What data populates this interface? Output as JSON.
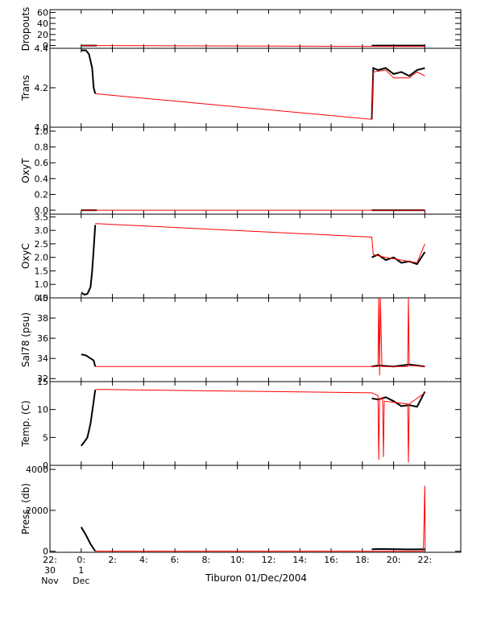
{
  "figure_title": "Tiburon 01/Dec/2004",
  "colors": {
    "axis": "#000000",
    "raw_series": "#000000",
    "fit_series": "#ff0000",
    "background": "#ffffff"
  },
  "x_axis": {
    "unit": "hours since 2004-12-01 00:00",
    "range": [
      -2,
      24.3
    ],
    "ticks": [
      {
        "x": -2,
        "lines": [
          "22:",
          "30",
          "Nov"
        ]
      },
      {
        "x": 0,
        "lines": [
          "0:",
          "1",
          "Dec"
        ]
      },
      {
        "x": 2,
        "lines": [
          "2:"
        ]
      },
      {
        "x": 4,
        "lines": [
          "4:"
        ]
      },
      {
        "x": 6,
        "lines": [
          "6:"
        ]
      },
      {
        "x": 8,
        "lines": [
          "8:"
        ]
      },
      {
        "x": 10,
        "lines": [
          "10:"
        ]
      },
      {
        "x": 12,
        "lines": [
          "12:"
        ]
      },
      {
        "x": 14,
        "lines": [
          "14:"
        ]
      },
      {
        "x": 16,
        "lines": [
          "16:"
        ]
      },
      {
        "x": 18,
        "lines": [
          "18:"
        ]
      },
      {
        "x": 20,
        "lines": [
          "20:"
        ]
      },
      {
        "x": 22,
        "lines": [
          "22:"
        ]
      }
    ]
  },
  "chart_data": [
    {
      "type": "line",
      "ylabel": "Dropouts",
      "ylim": [
        -5,
        65
      ],
      "yticks": [
        0,
        10,
        20,
        30,
        40,
        50,
        60
      ],
      "yticklabels": [
        "0",
        "",
        "20",
        "",
        "40",
        "",
        "60"
      ],
      "series": [
        {
          "role": "raw",
          "segments": [
            [
              [
                0,
                0
              ],
              [
                1.0,
                0
              ]
            ],
            [
              [
                18.6,
                0
              ],
              [
                22.0,
                0
              ]
            ]
          ]
        },
        {
          "role": "fit",
          "segments": [
            [
              [
                0,
                0
              ],
              [
                1.0,
                0
              ],
              [
                18.6,
                -1.5
              ],
              [
                22.0,
                -1.5
              ]
            ]
          ]
        }
      ]
    },
    {
      "type": "line",
      "ylabel": "Trans",
      "ylim": [
        4.0,
        4.4
      ],
      "yticks": [
        4.0,
        4.2,
        4.4
      ],
      "yticklabels": [
        "4.0",
        "4.2",
        "4.4"
      ],
      "series": [
        {
          "role": "raw",
          "segments": [
            [
              [
                0,
                4.39
              ],
              [
                0.3,
                4.39
              ],
              [
                0.5,
                4.37
              ],
              [
                0.7,
                4.3
              ],
              [
                0.8,
                4.2
              ],
              [
                0.9,
                4.17
              ]
            ],
            [
              [
                18.6,
                4.04
              ],
              [
                18.7,
                4.3
              ],
              [
                19.0,
                4.29
              ],
              [
                19.5,
                4.3
              ],
              [
                20.0,
                4.27
              ],
              [
                20.5,
                4.28
              ],
              [
                21.0,
                4.26
              ],
              [
                21.5,
                4.29
              ],
              [
                22.0,
                4.3
              ]
            ]
          ]
        },
        {
          "role": "fit",
          "segments": [
            [
              [
                0.9,
                4.17
              ],
              [
                18.6,
                4.04
              ],
              [
                18.7,
                4.28
              ],
              [
                19.5,
                4.29
              ],
              [
                20.0,
                4.25
              ],
              [
                21.0,
                4.25
              ],
              [
                21.5,
                4.28
              ],
              [
                22.0,
                4.26
              ]
            ]
          ]
        }
      ]
    },
    {
      "type": "line",
      "ylabel": "OxyT",
      "ylim": [
        -0.05,
        1.05
      ],
      "yticks": [
        0.0,
        0.2,
        0.4,
        0.6,
        0.8,
        1.0
      ],
      "yticklabels": [
        "0.0",
        "0.2",
        "0.4",
        "0.6",
        "0.8",
        "1.0"
      ],
      "series": [
        {
          "role": "raw",
          "segments": [
            [
              [
                0,
                0
              ],
              [
                1.0,
                0
              ]
            ],
            [
              [
                18.6,
                0
              ],
              [
                22.0,
                0
              ]
            ]
          ]
        },
        {
          "role": "fit",
          "segments": [
            [
              [
                0,
                0
              ],
              [
                22.0,
                0
              ]
            ]
          ]
        }
      ]
    },
    {
      "type": "line",
      "ylabel": "OxyC",
      "ylim": [
        0.5,
        3.6
      ],
      "yticks": [
        0.5,
        1.0,
        1.5,
        2.0,
        2.5,
        3.0,
        3.5
      ],
      "yticklabels": [
        "0.5",
        "1.0",
        "1.5",
        "2.0",
        "2.5",
        "3.0",
        "3.5"
      ],
      "series": [
        {
          "role": "raw",
          "segments": [
            [
              [
                0,
                0.7
              ],
              [
                0.2,
                0.62
              ],
              [
                0.4,
                0.65
              ],
              [
                0.6,
                0.9
              ],
              [
                0.7,
                1.5
              ],
              [
                0.8,
                2.3
              ],
              [
                0.9,
                3.2
              ]
            ],
            [
              [
                18.6,
                2.0
              ],
              [
                19.0,
                2.1
              ],
              [
                19.5,
                1.9
              ],
              [
                20.0,
                2.0
              ],
              [
                20.5,
                1.8
              ],
              [
                21.0,
                1.85
              ],
              [
                21.5,
                1.75
              ],
              [
                22.0,
                2.2
              ]
            ]
          ]
        },
        {
          "role": "fit",
          "segments": [
            [
              [
                0.9,
                3.25
              ],
              [
                18.6,
                2.75
              ],
              [
                18.7,
                2.1
              ],
              [
                19.5,
                2.0
              ],
              [
                20.5,
                1.9
              ],
              [
                21.5,
                1.8
              ],
              [
                22.0,
                2.5
              ]
            ]
          ]
        }
      ]
    },
    {
      "type": "line",
      "ylabel": "Sal78 (psu)",
      "ylim": [
        31.7,
        40
      ],
      "yticks": [
        32,
        34,
        36,
        38,
        40
      ],
      "yticklabels": [
        "32",
        "34",
        "36",
        "38",
        "40"
      ],
      "series": [
        {
          "role": "raw",
          "segments": [
            [
              [
                0,
                34.4
              ],
              [
                0.3,
                34.3
              ],
              [
                0.6,
                34.0
              ],
              [
                0.8,
                33.8
              ],
              [
                0.9,
                33.2
              ]
            ],
            [
              [
                18.6,
                33.2
              ],
              [
                19.0,
                33.3
              ],
              [
                20.0,
                33.2
              ],
              [
                21.0,
                33.4
              ],
              [
                21.5,
                33.3
              ],
              [
                22.0,
                33.2
              ]
            ]
          ]
        },
        {
          "role": "fit",
          "segments": [
            [
              [
                0.9,
                33.2
              ],
              [
                18.6,
                33.2
              ],
              [
                19.0,
                33.2
              ],
              [
                19.05,
                40
              ],
              [
                19.1,
                32.3
              ],
              [
                19.15,
                40
              ],
              [
                19.25,
                33.2
              ],
              [
                20.9,
                33.2
              ],
              [
                20.95,
                40
              ],
              [
                21.0,
                33.3
              ],
              [
                22.0,
                33.2
              ]
            ]
          ]
        }
      ]
    },
    {
      "type": "line",
      "ylabel": "Temp. (C)",
      "ylim": [
        0,
        15
      ],
      "yticks": [
        0,
        5,
        10,
        15
      ],
      "yticklabels": [
        "0",
        "5",
        "10",
        "15"
      ],
      "series": [
        {
          "role": "raw",
          "segments": [
            [
              [
                0,
                3.5
              ],
              [
                0.2,
                4.2
              ],
              [
                0.4,
                5.0
              ],
              [
                0.6,
                7.5
              ],
              [
                0.8,
                11.5
              ],
              [
                0.9,
                13.5
              ]
            ],
            [
              [
                18.6,
                12.0
              ],
              [
                19.0,
                11.8
              ],
              [
                19.5,
                12.2
              ],
              [
                20.0,
                11.5
              ],
              [
                20.5,
                10.6
              ],
              [
                21.0,
                10.8
              ],
              [
                21.5,
                10.5
              ],
              [
                22.0,
                13.2
              ]
            ]
          ]
        },
        {
          "role": "fit",
          "segments": [
            [
              [
                0.9,
                13.6
              ],
              [
                18.6,
                13.0
              ],
              [
                19.0,
                12.5
              ],
              [
                19.05,
                1.0
              ],
              [
                19.1,
                12.0
              ],
              [
                19.3,
                12.0
              ],
              [
                19.35,
                1.5
              ],
              [
                19.4,
                11.5
              ],
              [
                20.9,
                11.0
              ],
              [
                20.95,
                0.5
              ],
              [
                21.0,
                11.0
              ],
              [
                22.0,
                13.0
              ]
            ]
          ]
        }
      ]
    },
    {
      "type": "line",
      "ylabel": "Press. (db)",
      "ylim": [
        -50,
        4200
      ],
      "yticks": [
        0,
        2000,
        4000
      ],
      "yticklabels": [
        "0",
        "2000",
        "4000"
      ],
      "series": [
        {
          "role": "raw",
          "segments": [
            [
              [
                0,
                1180
              ],
              [
                0.3,
                800
              ],
              [
                0.6,
                350
              ],
              [
                0.9,
                10
              ]
            ],
            [
              [
                18.6,
                100
              ],
              [
                19.0,
                110
              ],
              [
                21.0,
                90
              ],
              [
                22.0,
                95
              ]
            ]
          ]
        },
        {
          "role": "fit",
          "segments": [
            [
              [
                0.9,
                5
              ],
              [
                18.6,
                5
              ],
              [
                21.9,
                5
              ],
              [
                22.0,
                3200
              ],
              [
                22.02,
                30
              ]
            ]
          ]
        }
      ]
    }
  ]
}
